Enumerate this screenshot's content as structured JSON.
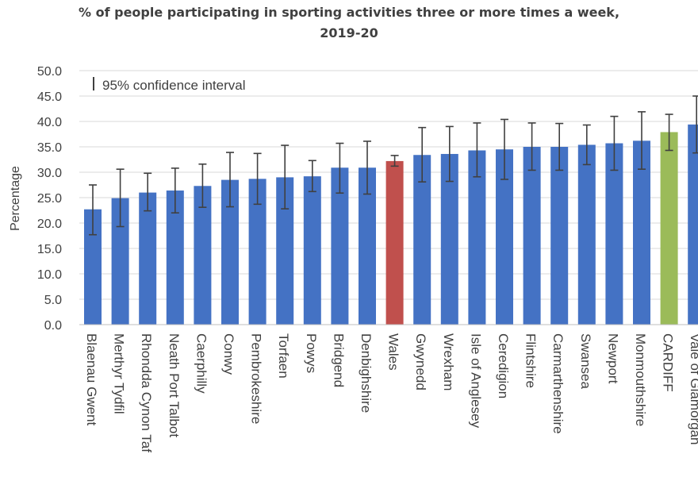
{
  "chart_data": {
    "type": "bar",
    "title_lines": [
      "% of people participating in sporting activities three or more times a week,",
      "2019-20"
    ],
    "xlabel": "",
    "ylabel": "Percentage",
    "ylim": [
      0,
      50
    ],
    "yticks": [
      "0.0",
      "5.0",
      "10.0",
      "15.0",
      "20.0",
      "25.0",
      "30.0",
      "35.0",
      "40.0",
      "45.0",
      "50.0"
    ],
    "grid": true,
    "legend_text": "95% confidence interval",
    "legend_position": "top-left",
    "categories": [
      "Blaenau Gwent",
      "Merthyr Tydfil",
      "Rhondda Cynon Taf",
      "Neath Port Talbot",
      "Caerphilly",
      "Conwy",
      "Pembrokeshire",
      "Torfaen",
      "Powys",
      "Bridgend",
      "Denbighshire",
      "Wales",
      "Gwynedd",
      "Wrexham",
      "Isle of Anglesey",
      "Ceredigion",
      "Flintshire",
      "Carmarthenshire",
      "Swansea",
      "Newport",
      "Monmouthshire",
      "CARDIFF",
      "Vale of Glamorgan"
    ],
    "values": [
      22.7,
      24.9,
      26.0,
      26.4,
      27.3,
      28.5,
      28.7,
      29.0,
      29.2,
      30.9,
      30.9,
      32.2,
      33.4,
      33.6,
      34.3,
      34.5,
      35.0,
      35.0,
      35.4,
      35.7,
      36.2,
      37.9,
      39.4
    ],
    "ci_low": [
      17.7,
      19.3,
      22.4,
      22.0,
      23.1,
      23.2,
      23.7,
      22.8,
      26.2,
      25.9,
      25.7,
      31.2,
      28.1,
      28.2,
      29.1,
      28.6,
      30.4,
      30.4,
      31.5,
      30.4,
      30.6,
      34.3,
      33.8
    ],
    "ci_high": [
      27.5,
      30.6,
      29.8,
      30.8,
      31.6,
      33.9,
      33.7,
      35.3,
      32.3,
      35.7,
      36.1,
      33.3,
      38.8,
      39.0,
      39.7,
      40.4,
      39.7,
      39.6,
      39.3,
      41.0,
      41.9,
      41.4,
      45.0
    ],
    "colors": {
      "default": "#4472C4",
      "Wales": "#C0504D",
      "CARDIFF": "#9BBB59",
      "error_bar": "#404040",
      "grid": "#D9D9D9",
      "axis": "#BFBFBF",
      "text": "#404040"
    }
  }
}
